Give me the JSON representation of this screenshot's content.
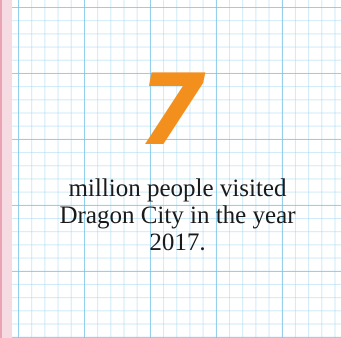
{
  "stat": {
    "number": "7",
    "caption": "million people visited Dragon City in the year 2017."
  },
  "colors": {
    "accent": "#f3901d",
    "grid_line": "#78c3e6",
    "left_margin": "#e9a3b3",
    "text": "#1a1a1a"
  }
}
